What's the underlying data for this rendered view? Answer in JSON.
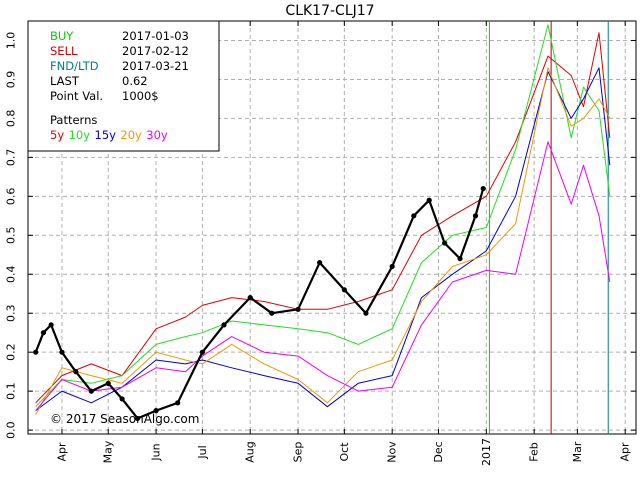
{
  "chart_data": {
    "type": "line",
    "title": "CLK17-CLJ17",
    "xlabel": "",
    "ylabel": "",
    "ylim": [
      -0.01,
      1.05
    ],
    "yticks": [
      0.0,
      0.1,
      0.2,
      0.3,
      0.4,
      0.5,
      0.6,
      0.7,
      0.8,
      0.9,
      1.0
    ],
    "ytick_labels": [
      "0.0",
      "0.1",
      "0.2",
      "0.3",
      "0.4",
      "0.5",
      "0.6",
      "0.7",
      "0.8",
      "0.9",
      "1.0"
    ],
    "x_range": [
      "2016-03-10",
      "2017-04-08"
    ],
    "x_ticks": [
      {
        "date": "2016-04-01",
        "label": "Apr"
      },
      {
        "date": "2016-05-01",
        "label": "May"
      },
      {
        "date": "2016-06-01",
        "label": "Jun"
      },
      {
        "date": "2016-07-01",
        "label": "Jul"
      },
      {
        "date": "2016-08-01",
        "label": "Aug"
      },
      {
        "date": "2016-09-01",
        "label": "Sep"
      },
      {
        "date": "2016-10-01",
        "label": "Oct"
      },
      {
        "date": "2016-11-01",
        "label": "Nov"
      },
      {
        "date": "2016-12-01",
        "label": "Dec"
      },
      {
        "date": "2017-01-01",
        "label": "2017"
      },
      {
        "date": "2017-02-01",
        "label": "Feb"
      },
      {
        "date": "2017-03-01",
        "label": "Mar"
      },
      {
        "date": "2017-04-01",
        "label": "Apr"
      }
    ],
    "grid": true,
    "vlines": [
      {
        "date": "2017-01-03",
        "color": "#00cc00"
      },
      {
        "date": "2017-02-12",
        "color": "#aa0000"
      },
      {
        "date": "2017-03-21",
        "color": "#008080"
      }
    ],
    "info": [
      {
        "label": "BUY",
        "value": "2017-01-03",
        "color": "#00cc00"
      },
      {
        "label": "SELL",
        "value": "2017-02-12",
        "color": "#cc0000"
      },
      {
        "label": "FND/LTD",
        "value": "2017-03-21",
        "color": "#008080"
      },
      {
        "label": "LAST",
        "value": "0.62",
        "color": "#000000"
      },
      {
        "label": "Point Val.",
        "value": "1000$",
        "color": "#000000"
      }
    ],
    "patterns_title": "Patterns",
    "legend_placement": "top-left",
    "series": [
      {
        "name": "5y",
        "color": "#dd0000",
        "points": [
          [
            "2016-03-15",
            0.07
          ],
          [
            "2016-04-01",
            0.14
          ],
          [
            "2016-04-20",
            0.17
          ],
          [
            "2016-05-10",
            0.14
          ],
          [
            "2016-06-01",
            0.26
          ],
          [
            "2016-06-20",
            0.29
          ],
          [
            "2016-07-01",
            0.32
          ],
          [
            "2016-07-20",
            0.34
          ],
          [
            "2016-08-10",
            0.33
          ],
          [
            "2016-09-01",
            0.31
          ],
          [
            "2016-09-20",
            0.31
          ],
          [
            "2016-10-10",
            0.33
          ],
          [
            "2016-11-01",
            0.36
          ],
          [
            "2016-11-20",
            0.5
          ],
          [
            "2016-12-10",
            0.55
          ],
          [
            "2017-01-01",
            0.6
          ],
          [
            "2017-01-20",
            0.74
          ],
          [
            "2017-02-10",
            0.96
          ],
          [
            "2017-02-25",
            0.91
          ],
          [
            "2017-03-05",
            0.83
          ],
          [
            "2017-03-15",
            1.02
          ],
          [
            "2017-03-22",
            0.75
          ]
        ]
      },
      {
        "name": "10y",
        "color": "#22dd22",
        "points": [
          [
            "2016-03-15",
            0.06
          ],
          [
            "2016-04-01",
            0.13
          ],
          [
            "2016-04-20",
            0.12
          ],
          [
            "2016-05-10",
            0.14
          ],
          [
            "2016-06-01",
            0.22
          ],
          [
            "2016-06-20",
            0.24
          ],
          [
            "2016-07-01",
            0.25
          ],
          [
            "2016-07-20",
            0.28
          ],
          [
            "2016-08-10",
            0.27
          ],
          [
            "2016-09-01",
            0.26
          ],
          [
            "2016-09-20",
            0.25
          ],
          [
            "2016-10-10",
            0.22
          ],
          [
            "2016-11-01",
            0.26
          ],
          [
            "2016-11-20",
            0.43
          ],
          [
            "2016-12-10",
            0.5
          ],
          [
            "2017-01-01",
            0.52
          ],
          [
            "2017-01-20",
            0.72
          ],
          [
            "2017-02-10",
            1.04
          ],
          [
            "2017-02-25",
            0.75
          ],
          [
            "2017-03-05",
            0.88
          ],
          [
            "2017-03-15",
            0.82
          ],
          [
            "2017-03-22",
            0.6
          ]
        ]
      },
      {
        "name": "15y",
        "color": "#0000cc",
        "points": [
          [
            "2016-03-15",
            0.05
          ],
          [
            "2016-04-01",
            0.1
          ],
          [
            "2016-04-20",
            0.07
          ],
          [
            "2016-05-10",
            0.11
          ],
          [
            "2016-06-01",
            0.18
          ],
          [
            "2016-06-20",
            0.17
          ],
          [
            "2016-07-01",
            0.18
          ],
          [
            "2016-07-20",
            0.16
          ],
          [
            "2016-08-10",
            0.14
          ],
          [
            "2016-09-01",
            0.12
          ],
          [
            "2016-09-20",
            0.06
          ],
          [
            "2016-10-10",
            0.12
          ],
          [
            "2016-11-01",
            0.14
          ],
          [
            "2016-11-20",
            0.34
          ],
          [
            "2016-12-10",
            0.4
          ],
          [
            "2017-01-01",
            0.46
          ],
          [
            "2017-01-20",
            0.6
          ],
          [
            "2017-02-10",
            0.92
          ],
          [
            "2017-02-25",
            0.8
          ],
          [
            "2017-03-05",
            0.85
          ],
          [
            "2017-03-15",
            0.93
          ],
          [
            "2017-03-22",
            0.68
          ]
        ]
      },
      {
        "name": "20y",
        "color": "#ee9900",
        "points": [
          [
            "2016-03-15",
            0.04
          ],
          [
            "2016-04-01",
            0.16
          ],
          [
            "2016-04-20",
            0.14
          ],
          [
            "2016-05-10",
            0.12
          ],
          [
            "2016-06-01",
            0.2
          ],
          [
            "2016-06-20",
            0.18
          ],
          [
            "2016-07-01",
            0.17
          ],
          [
            "2016-07-20",
            0.22
          ],
          [
            "2016-08-10",
            0.17
          ],
          [
            "2016-09-01",
            0.13
          ],
          [
            "2016-09-20",
            0.07
          ],
          [
            "2016-10-10",
            0.15
          ],
          [
            "2016-11-01",
            0.18
          ],
          [
            "2016-11-20",
            0.33
          ],
          [
            "2016-12-10",
            0.42
          ],
          [
            "2017-01-01",
            0.45
          ],
          [
            "2017-01-20",
            0.53
          ],
          [
            "2017-02-10",
            0.93
          ],
          [
            "2017-02-25",
            0.78
          ],
          [
            "2017-03-05",
            0.8
          ],
          [
            "2017-03-15",
            0.85
          ],
          [
            "2017-03-22",
            0.8
          ]
        ]
      },
      {
        "name": "30y",
        "color": "#ee00ee",
        "points": [
          [
            "2016-03-15",
            0.05
          ],
          [
            "2016-04-01",
            0.13
          ],
          [
            "2016-04-20",
            0.1
          ],
          [
            "2016-05-10",
            0.11
          ],
          [
            "2016-06-01",
            0.16
          ],
          [
            "2016-06-20",
            0.15
          ],
          [
            "2016-07-01",
            0.19
          ],
          [
            "2016-07-20",
            0.24
          ],
          [
            "2016-08-10",
            0.2
          ],
          [
            "2016-09-01",
            0.19
          ],
          [
            "2016-09-20",
            0.14
          ],
          [
            "2016-10-10",
            0.1
          ],
          [
            "2016-11-01",
            0.11
          ],
          [
            "2016-11-20",
            0.27
          ],
          [
            "2016-12-10",
            0.38
          ],
          [
            "2017-01-01",
            0.41
          ],
          [
            "2017-01-20",
            0.4
          ],
          [
            "2017-02-10",
            0.74
          ],
          [
            "2017-02-25",
            0.58
          ],
          [
            "2017-03-05",
            0.68
          ],
          [
            "2017-03-15",
            0.55
          ],
          [
            "2017-03-22",
            0.38
          ]
        ]
      },
      {
        "name": "CLK17-CLJ17",
        "color": "#000000",
        "markers": true,
        "points": [
          [
            "2016-03-15",
            0.2
          ],
          [
            "2016-03-20",
            0.25
          ],
          [
            "2016-03-25",
            0.27
          ],
          [
            "2016-04-01",
            0.2
          ],
          [
            "2016-04-10",
            0.15
          ],
          [
            "2016-04-20",
            0.1
          ],
          [
            "2016-05-01",
            0.12
          ],
          [
            "2016-05-10",
            0.08
          ],
          [
            "2016-05-20",
            0.03
          ],
          [
            "2016-06-01",
            0.05
          ],
          [
            "2016-06-15",
            0.07
          ],
          [
            "2016-07-01",
            0.2
          ],
          [
            "2016-07-15",
            0.27
          ],
          [
            "2016-08-01",
            0.34
          ],
          [
            "2016-08-15",
            0.3
          ],
          [
            "2016-09-01",
            0.31
          ],
          [
            "2016-09-15",
            0.43
          ],
          [
            "2016-10-01",
            0.36
          ],
          [
            "2016-10-15",
            0.3
          ],
          [
            "2016-11-01",
            0.42
          ],
          [
            "2016-11-15",
            0.55
          ],
          [
            "2016-11-25",
            0.59
          ],
          [
            "2016-12-05",
            0.48
          ],
          [
            "2016-12-15",
            0.44
          ],
          [
            "2016-12-25",
            0.55
          ],
          [
            "2016-12-30",
            0.62
          ]
        ]
      }
    ]
  },
  "copyright": "© 2017 SeasonAlgo.com"
}
